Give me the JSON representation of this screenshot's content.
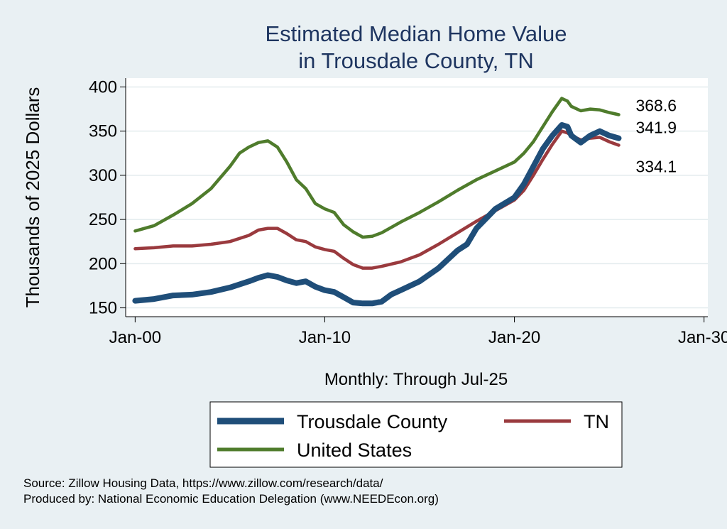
{
  "chart_data": {
    "type": "line",
    "title": [
      "Estimated Median Home Value",
      "in Trousdale County, TN"
    ],
    "ylabel": "Thousands of 2025 Dollars",
    "xlabel": "Monthly: Through Jul-25",
    "ylim": [
      140,
      410
    ],
    "yticks": [
      150,
      200,
      250,
      300,
      350,
      400
    ],
    "xlim": [
      1999.5,
      2030.2
    ],
    "xticks": [
      {
        "value": 2000,
        "label": "Jan-00"
      },
      {
        "value": 2010,
        "label": "Jan-10"
      },
      {
        "value": 2020,
        "label": "Jan-20"
      },
      {
        "value": 2030,
        "label": "Jan-30"
      }
    ],
    "series": [
      {
        "name": "United States",
        "color": "#4f7c2c",
        "end_label": "368.6",
        "points": [
          [
            2000,
            237
          ],
          [
            2001,
            243
          ],
          [
            2002,
            255
          ],
          [
            2003,
            268
          ],
          [
            2004,
            285
          ],
          [
            2005,
            310
          ],
          [
            2005.5,
            325
          ],
          [
            2006,
            332
          ],
          [
            2006.5,
            337
          ],
          [
            2007,
            339
          ],
          [
            2007.5,
            332
          ],
          [
            2008,
            315
          ],
          [
            2008.5,
            295
          ],
          [
            2009,
            285
          ],
          [
            2009.5,
            268
          ],
          [
            2010,
            262
          ],
          [
            2010.5,
            258
          ],
          [
            2011,
            244
          ],
          [
            2011.5,
            236
          ],
          [
            2012,
            230
          ],
          [
            2012.5,
            231
          ],
          [
            2013,
            235
          ],
          [
            2014,
            247
          ],
          [
            2015,
            258
          ],
          [
            2016,
            270
          ],
          [
            2017,
            283
          ],
          [
            2018,
            295
          ],
          [
            2019,
            305
          ],
          [
            2020,
            315
          ],
          [
            2020.5,
            325
          ],
          [
            2021,
            338
          ],
          [
            2021.5,
            355
          ],
          [
            2022,
            372
          ],
          [
            2022.5,
            387
          ],
          [
            2022.8,
            384
          ],
          [
            2023,
            378
          ],
          [
            2023.5,
            373
          ],
          [
            2024,
            375
          ],
          [
            2024.5,
            374
          ],
          [
            2025,
            371
          ],
          [
            2025.5,
            368.6
          ]
        ]
      },
      {
        "name": "TN",
        "color": "#9a3a3e",
        "end_label": "334.1",
        "points": [
          [
            2000,
            217
          ],
          [
            2001,
            218
          ],
          [
            2002,
            220
          ],
          [
            2003,
            220
          ],
          [
            2004,
            222
          ],
          [
            2005,
            225
          ],
          [
            2006,
            232
          ],
          [
            2006.5,
            238
          ],
          [
            2007,
            240
          ],
          [
            2007.5,
            240
          ],
          [
            2008,
            234
          ],
          [
            2008.5,
            227
          ],
          [
            2009,
            225
          ],
          [
            2009.5,
            219
          ],
          [
            2010,
            216
          ],
          [
            2010.5,
            214
          ],
          [
            2011,
            206
          ],
          [
            2011.5,
            199
          ],
          [
            2012,
            195
          ],
          [
            2012.5,
            195
          ],
          [
            2013,
            197
          ],
          [
            2014,
            202
          ],
          [
            2015,
            210
          ],
          [
            2016,
            222
          ],
          [
            2017,
            235
          ],
          [
            2018,
            248
          ],
          [
            2019,
            260
          ],
          [
            2020,
            272
          ],
          [
            2020.5,
            283
          ],
          [
            2021,
            300
          ],
          [
            2021.5,
            318
          ],
          [
            2022,
            335
          ],
          [
            2022.5,
            350
          ],
          [
            2022.8,
            348
          ],
          [
            2023,
            345
          ],
          [
            2023.5,
            340
          ],
          [
            2024,
            342
          ],
          [
            2024.5,
            343
          ],
          [
            2025,
            338
          ],
          [
            2025.5,
            334.1
          ]
        ]
      },
      {
        "name": "Trousdale County",
        "color": "#1f4e79",
        "end_label": "341.9",
        "points": [
          [
            2000,
            158
          ],
          [
            2001,
            160
          ],
          [
            2002,
            164
          ],
          [
            2003,
            165
          ],
          [
            2004,
            168
          ],
          [
            2005,
            173
          ],
          [
            2006,
            180
          ],
          [
            2006.5,
            184
          ],
          [
            2007,
            187
          ],
          [
            2007.5,
            185
          ],
          [
            2008,
            181
          ],
          [
            2008.5,
            178
          ],
          [
            2009,
            180
          ],
          [
            2009.5,
            174
          ],
          [
            2010,
            170
          ],
          [
            2010.5,
            168
          ],
          [
            2011,
            162
          ],
          [
            2011.5,
            156
          ],
          [
            2012,
            155
          ],
          [
            2012.5,
            155
          ],
          [
            2013,
            157
          ],
          [
            2013.5,
            165
          ],
          [
            2014,
            170
          ],
          [
            2015,
            180
          ],
          [
            2016,
            195
          ],
          [
            2017,
            215
          ],
          [
            2017.5,
            222
          ],
          [
            2018,
            240
          ],
          [
            2019,
            262
          ],
          [
            2020,
            275
          ],
          [
            2020.5,
            290
          ],
          [
            2021,
            310
          ],
          [
            2021.5,
            330
          ],
          [
            2022,
            345
          ],
          [
            2022.5,
            357
          ],
          [
            2022.8,
            355
          ],
          [
            2023,
            345
          ],
          [
            2023.5,
            337
          ],
          [
            2024,
            345
          ],
          [
            2024.5,
            350
          ],
          [
            2025,
            345
          ],
          [
            2025.5,
            341.9
          ]
        ]
      }
    ],
    "legend": [
      {
        "label": "Trousdale County",
        "color": "#1f4e79",
        "thick": true
      },
      {
        "label": "TN",
        "color": "#9a3a3e",
        "thick": false
      },
      {
        "label": "United States",
        "color": "#4f7c2c",
        "thick": false
      }
    ]
  },
  "footer": {
    "source": "Source: Zillow Housing Data, https://www.zillow.com/research/data/",
    "produced": "Produced by: National Economic Education Delegation (www.NEEDEcon.org)"
  }
}
